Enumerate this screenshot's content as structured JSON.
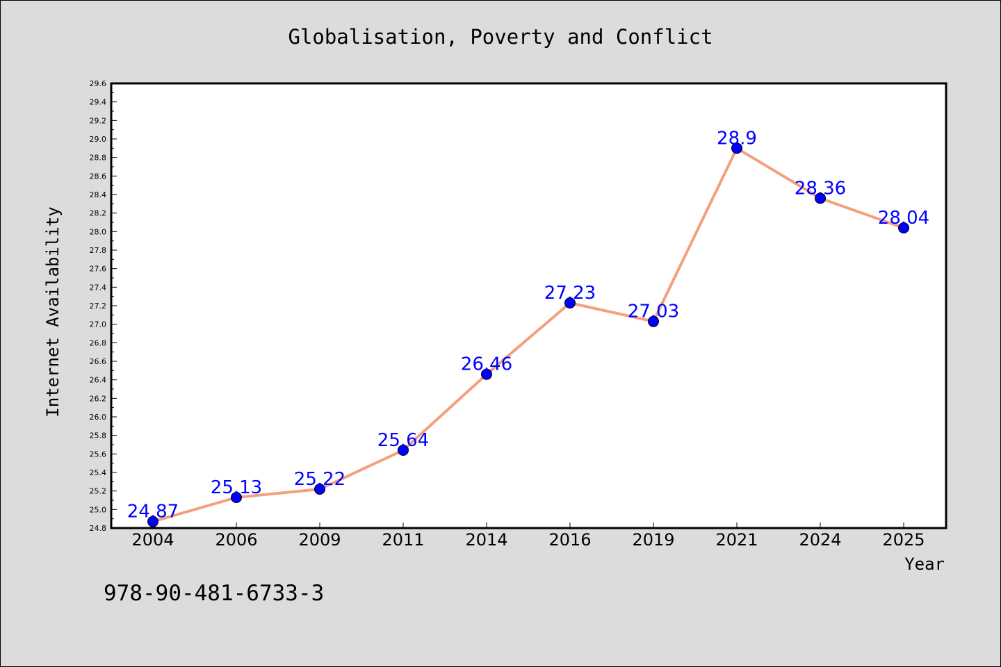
{
  "chart_data": {
    "type": "line",
    "title": "Globalisation, Poverty and Conflict",
    "xlabel": "Year",
    "ylabel": "Internet Availability",
    "categories": [
      "2004",
      "2006",
      "2009",
      "2011",
      "2014",
      "2016",
      "2019",
      "2021",
      "2024",
      "2025"
    ],
    "series": [
      {
        "values": [
          24.87,
          25.13,
          25.22,
          25.64,
          26.46,
          27.23,
          27.03,
          28.9,
          28.36,
          28.04
        ],
        "labels": [
          "24.87",
          "25.13",
          "25.22",
          "25.64",
          "26.46",
          "27.23",
          "27.03",
          "28.9",
          "28.36",
          "28.04"
        ],
        "line_color": "#f4a07e",
        "marker_color": "#0000ff",
        "label_color": "#0000ff"
      }
    ],
    "ylim": [
      24.8,
      29.6
    ],
    "y_ticks": [
      "24.8",
      "25.0",
      "25.2",
      "25.4",
      "25.6",
      "25.8",
      "26.0",
      "26.2",
      "26.4",
      "26.6",
      "26.8",
      "27.0",
      "27.2",
      "27.4",
      "27.6",
      "27.8",
      "28.0",
      "28.2",
      "28.4",
      "28.6",
      "28.8",
      "29.0",
      "29.2",
      "29.4",
      "29.6"
    ],
    "grid": false,
    "legend": "none"
  },
  "footer": {
    "isbn": "978-90-481-6733-3"
  },
  "colors": {
    "background": "#dcdcdc",
    "plot_background": "#ffffff",
    "line": "#f4a07e",
    "marker": "#0000ff",
    "label": "#0000ff"
  }
}
